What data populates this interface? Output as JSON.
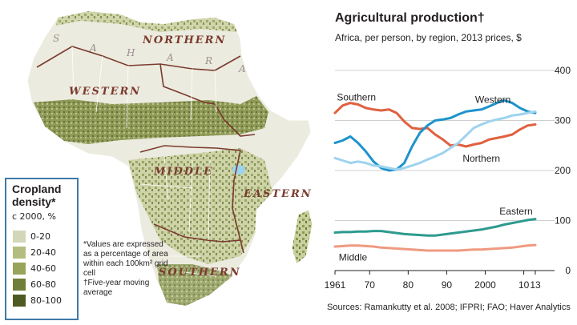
{
  "map": {
    "regions": [
      "NORTHERN",
      "WESTERN",
      "MIDDLE",
      "EASTERN",
      "SOUTHERN"
    ],
    "sahara_letters": [
      "S",
      "A",
      "H",
      "A",
      "R",
      "A"
    ],
    "legend": {
      "title_line1": "Cropland",
      "title_line2": "density*",
      "subtitle": "c 2000, %",
      "items": [
        {
          "label": "0-20",
          "color": "#d3d6b8"
        },
        {
          "label": "20-40",
          "color": "#b4bd7f"
        },
        {
          "label": "40-60",
          "color": "#97a45a"
        },
        {
          "label": "60-80",
          "color": "#6f7e39"
        },
        {
          "label": "80-100",
          "color": "#4d5a22"
        }
      ]
    },
    "footnote_1": "*Values are expressed as a percentage of area within each 100km² grid cell",
    "footnote_2": "†Five-year moving average"
  },
  "chart": {
    "title": "Agricultural production†",
    "subtitle": "Africa, per person, by region, 2013 prices, $",
    "source": "Sources: Ramankutty et al. 2008; IFPRI; FAO; Haver Analytics"
  },
  "chart_data": {
    "type": "line",
    "title": "Agricultural production†",
    "subtitle": "Africa, per person, by region, 2013 prices, $",
    "xlabel": "",
    "ylabel": "",
    "x": [
      1961,
      1963,
      1965,
      1967,
      1969,
      1971,
      1973,
      1975,
      1977,
      1979,
      1981,
      1983,
      1985,
      1987,
      1989,
      1991,
      1993,
      1995,
      1997,
      1999,
      2001,
      2003,
      2005,
      2007,
      2009,
      2011,
      2013
    ],
    "x_tick_labels": [
      "1961",
      "70",
      "80",
      "90",
      "2000",
      "10",
      "13"
    ],
    "x_tick_values": [
      1961,
      1970,
      1980,
      1990,
      2000,
      2010,
      2013
    ],
    "y_tick_labels": [
      "0",
      "100",
      "200",
      "300",
      "400"
    ],
    "y_tick_values": [
      0,
      100,
      200,
      300,
      400
    ],
    "ylim": [
      0,
      400
    ],
    "series": [
      {
        "name": "Southern",
        "color": "#e0603f",
        "values": [
          315,
          330,
          335,
          332,
          325,
          322,
          320,
          322,
          315,
          298,
          285,
          283,
          285,
          272,
          262,
          250,
          252,
          248,
          252,
          255,
          262,
          265,
          268,
          272,
          282,
          290,
          292
        ]
      },
      {
        "name": "Western",
        "color": "#1e93cc",
        "values": [
          255,
          260,
          268,
          255,
          238,
          218,
          205,
          200,
          202,
          215,
          248,
          275,
          290,
          300,
          302,
          305,
          312,
          318,
          320,
          322,
          328,
          335,
          340,
          335,
          325,
          318,
          315
        ]
      },
      {
        "name": "Northern",
        "color": "#9ed3ee",
        "values": [
          225,
          220,
          215,
          218,
          215,
          210,
          208,
          205,
          202,
          205,
          210,
          215,
          222,
          228,
          235,
          245,
          255,
          270,
          285,
          292,
          298,
          302,
          305,
          310,
          312,
          315,
          318
        ]
      },
      {
        "name": "Eastern",
        "color": "#2e9a8e",
        "values": [
          76,
          77,
          77,
          78,
          78,
          79,
          79,
          77,
          75,
          73,
          72,
          71,
          70,
          70,
          72,
          74,
          76,
          78,
          80,
          82,
          85,
          88,
          92,
          95,
          98,
          101,
          103
        ]
      },
      {
        "name": "Middle",
        "color": "#ef9a80",
        "values": [
          48,
          49,
          50,
          50,
          49,
          48,
          46,
          45,
          44,
          43,
          42,
          41,
          40,
          40,
          40,
          40,
          40,
          41,
          42,
          42,
          43,
          44,
          45,
          46,
          48,
          50,
          51
        ]
      }
    ]
  }
}
